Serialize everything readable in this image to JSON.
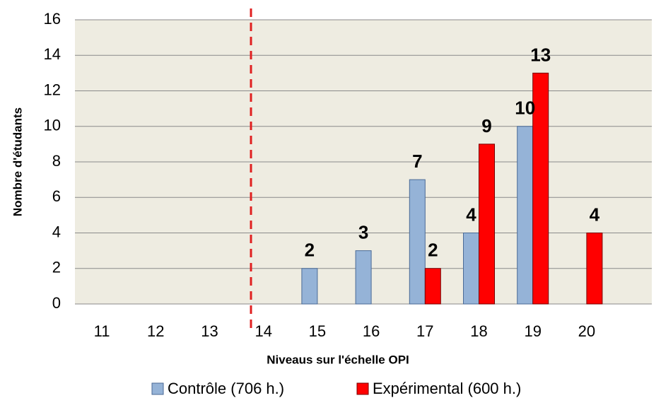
{
  "chart_data": {
    "type": "bar",
    "x_label": "Niveaus sur l'échelle OPI",
    "y_label": "Nombre d'étudants",
    "categories": [
      "11",
      "12",
      "13",
      "14",
      "15",
      "16",
      "17",
      "18",
      "19",
      "20"
    ],
    "series": [
      {
        "name": "Contrôle (706 h.)",
        "color": "#95b3d7",
        "values": [
          0,
          0,
          0,
          0,
          2,
          3,
          7,
          4,
          10,
          0
        ]
      },
      {
        "name": "Expérimental (600 h.)",
        "color": "#ff0000",
        "values": [
          0,
          0,
          0,
          0,
          0,
          0,
          2,
          9,
          13,
          4
        ]
      }
    ],
    "ylim": [
      0,
      16
    ],
    "yticks": [
      0,
      2,
      4,
      6,
      8,
      10,
      12,
      14,
      16
    ],
    "grid": true
  }
}
